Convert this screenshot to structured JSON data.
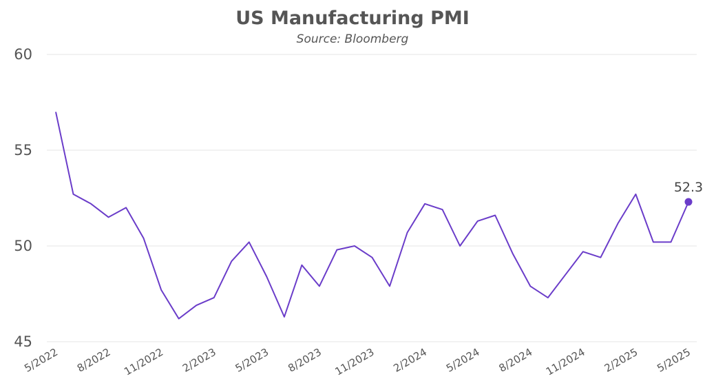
{
  "chart_data": {
    "type": "line",
    "title": "US Manufacturing PMI",
    "subtitle": "Source: Bloomberg",
    "xlabel": "",
    "ylabel": "",
    "ylim": [
      45,
      60
    ],
    "yticks": [
      45,
      50,
      55,
      60
    ],
    "grid": true,
    "x": [
      "5/2022",
      "6/2022",
      "7/2022",
      "8/2022",
      "9/2022",
      "10/2022",
      "11/2022",
      "12/2022",
      "1/2023",
      "2/2023",
      "3/2023",
      "4/2023",
      "5/2023",
      "6/2023",
      "7/2023",
      "8/2023",
      "9/2023",
      "10/2023",
      "11/2023",
      "12/2023",
      "1/2024",
      "2/2024",
      "3/2024",
      "4/2024",
      "5/2024",
      "6/2024",
      "7/2024",
      "8/2024",
      "9/2024",
      "10/2024",
      "11/2024",
      "12/2024",
      "1/2025",
      "2/2025",
      "3/2025",
      "4/2025",
      "5/2025"
    ],
    "xtick_labels": [
      "5/2022",
      "8/2022",
      "11/2022",
      "2/2023",
      "5/2023",
      "8/2023",
      "11/2023",
      "2/2024",
      "5/2024",
      "8/2024",
      "11/2024",
      "2/2025",
      "5/2025"
    ],
    "series": [
      {
        "values": [
          57.0,
          52.7,
          52.2,
          51.5,
          52.0,
          50.4,
          47.7,
          46.2,
          46.9,
          47.3,
          49.2,
          50.2,
          48.4,
          46.3,
          49.0,
          47.9,
          49.8,
          50.0,
          49.4,
          47.9,
          50.7,
          52.2,
          51.9,
          50.0,
          51.3,
          51.6,
          49.6,
          47.9,
          47.3,
          48.5,
          49.7,
          49.4,
          51.2,
          52.7,
          50.2,
          50.2,
          52.3
        ],
        "color": "#6a3cc9"
      }
    ],
    "annotations": [
      {
        "x": "5/2025",
        "label": "52.3"
      }
    ]
  }
}
